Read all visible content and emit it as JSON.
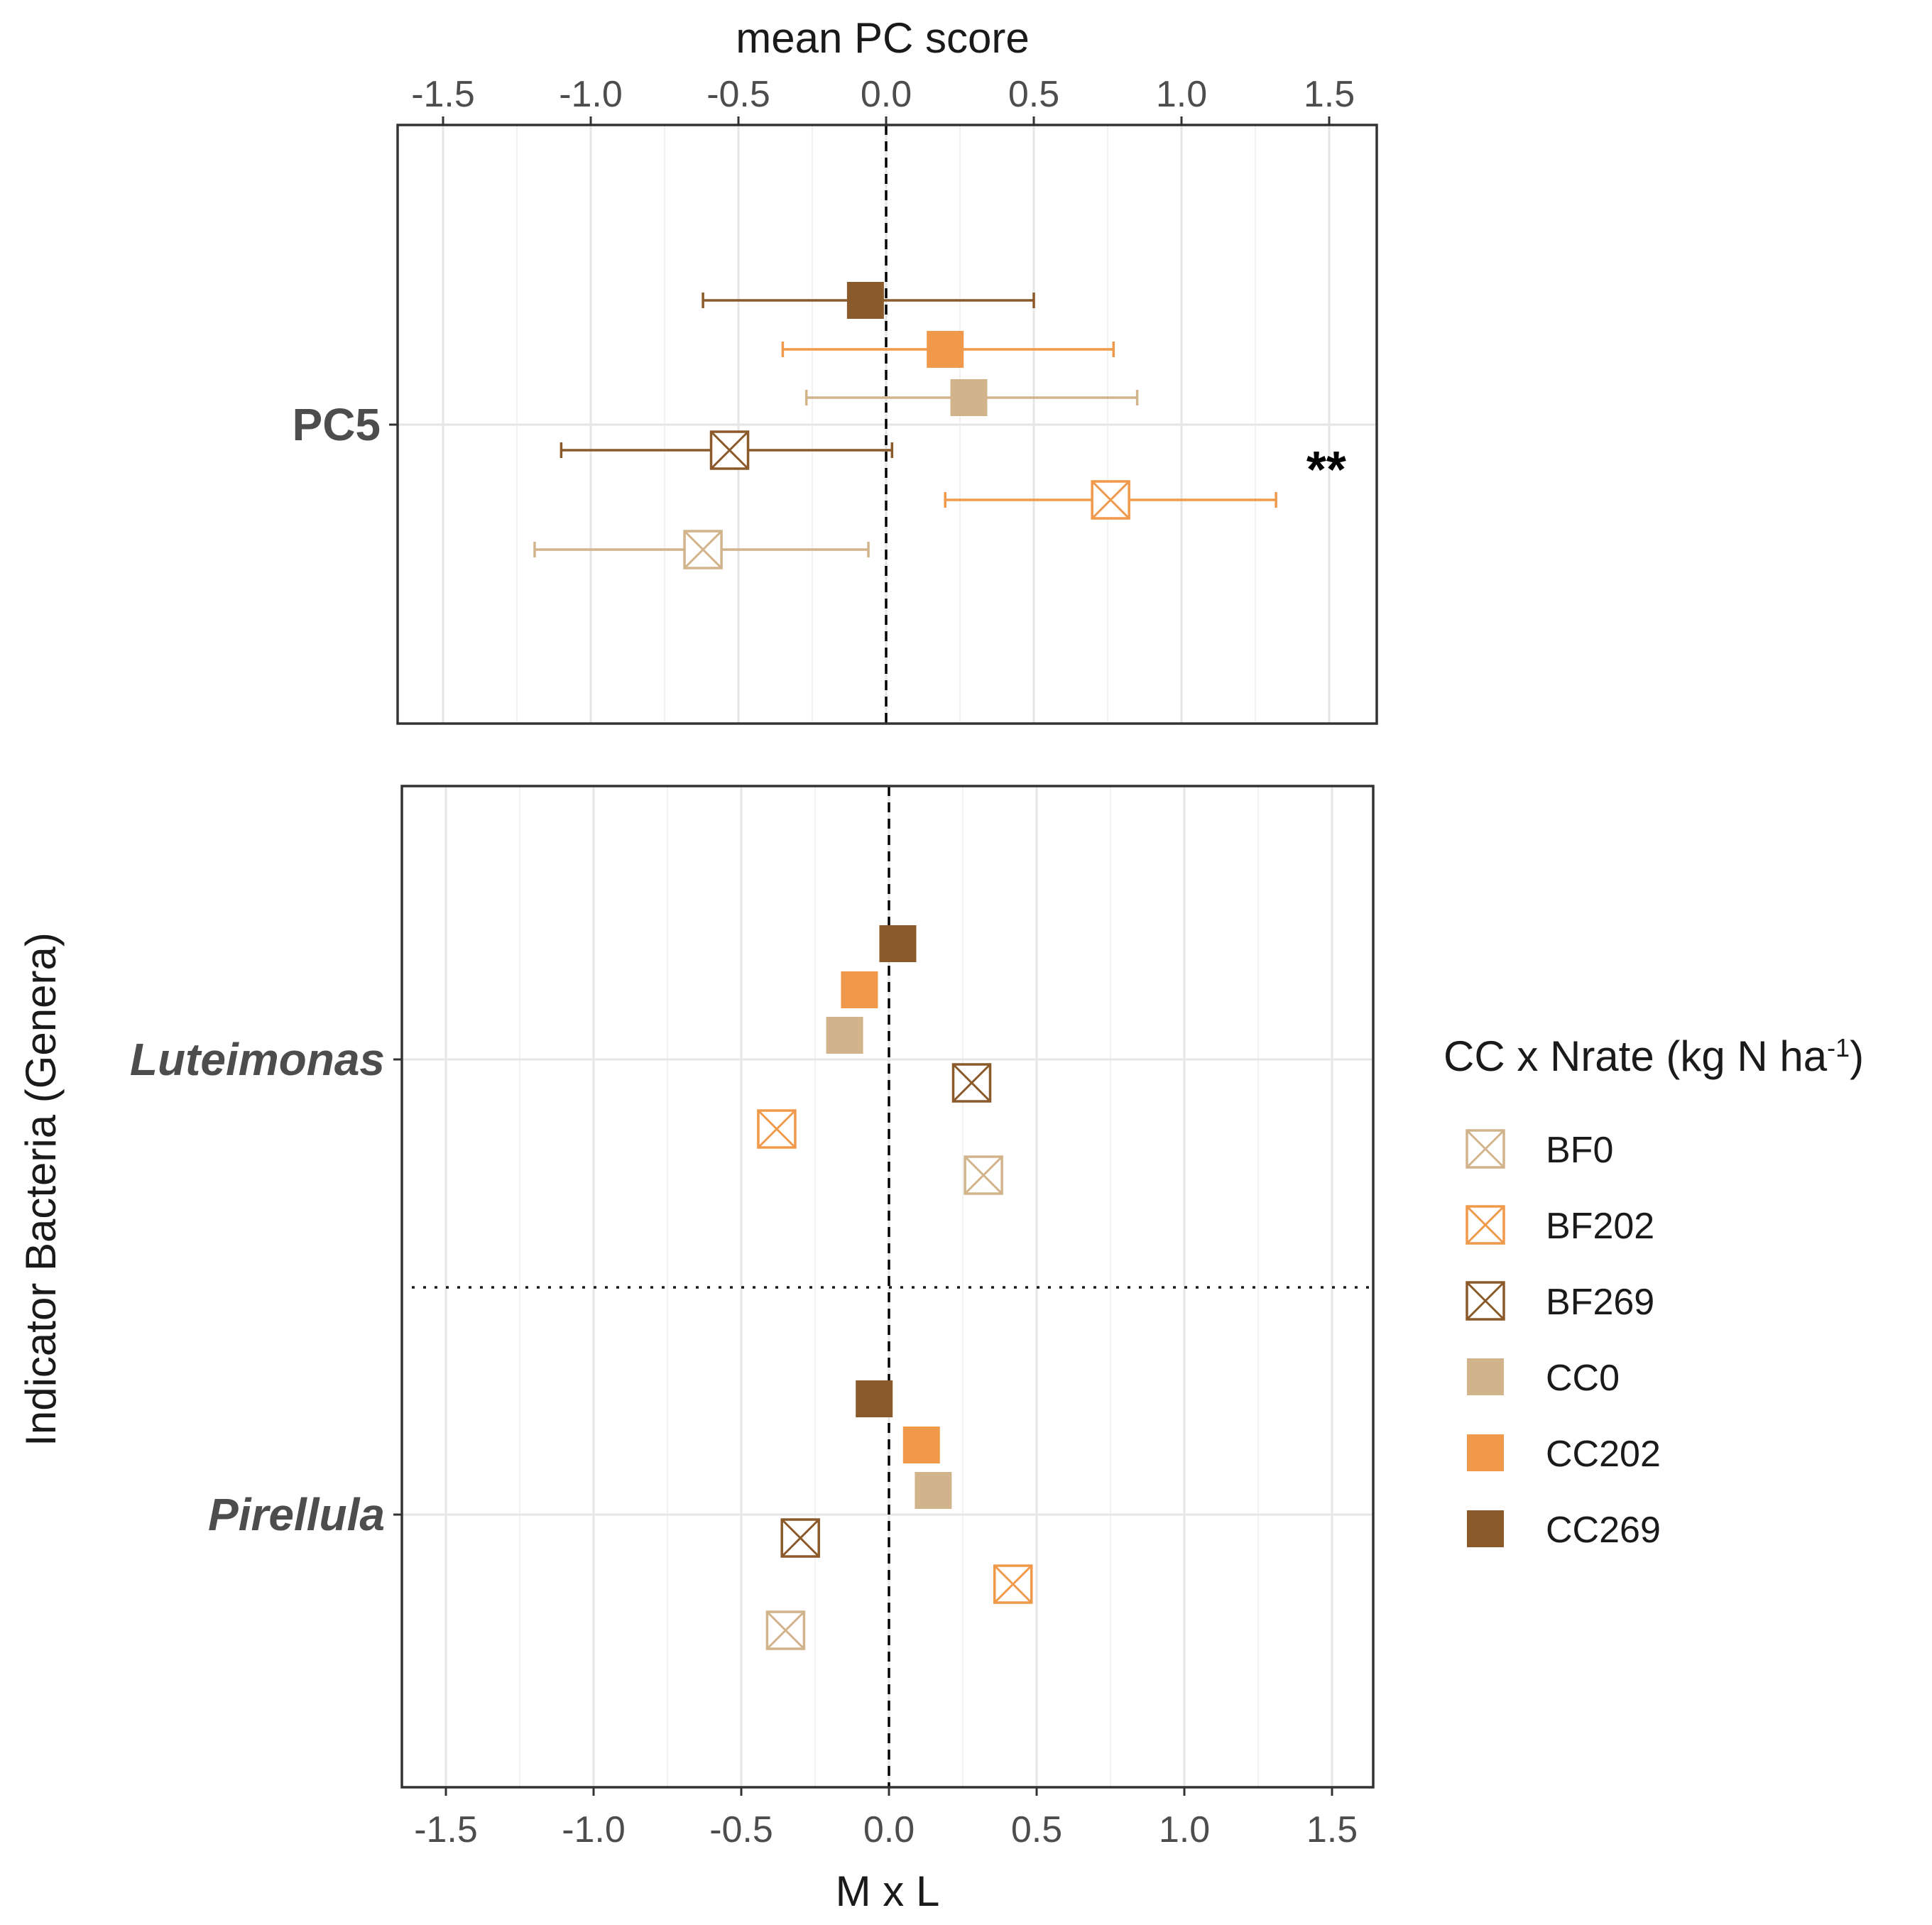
{
  "chart_data": [
    {
      "type": "scatter",
      "panel": "top",
      "xlabel": "mean PC score",
      "xlim": [
        -1.65,
        1.65
      ],
      "xticks": [
        "-1.5",
        "-1.0",
        "-0.5",
        "0.0",
        "0.5",
        "1.0",
        "1.5"
      ],
      "xtick_values": [
        -1.5,
        -1.0,
        -0.5,
        0.0,
        0.5,
        1.0,
        1.5
      ],
      "reference_line": 0,
      "categories": [
        {
          "label": "PC5",
          "italic": false,
          "points": [
            {
              "group": "CC269",
              "value": -0.07,
              "lo": -0.62,
              "hi": 0.5
            },
            {
              "group": "CC202",
              "value": 0.2,
              "lo": -0.35,
              "hi": 0.77
            },
            {
              "group": "CC0",
              "value": 0.28,
              "lo": -0.27,
              "hi": 0.85
            },
            {
              "group": "BF269",
              "value": -0.53,
              "lo": -1.1,
              "hi": 0.02
            },
            {
              "group": "BF202",
              "value": 0.76,
              "lo": 0.2,
              "hi": 1.32
            },
            {
              "group": "BF0",
              "value": -0.62,
              "lo": -1.19,
              "hi": -0.06
            }
          ]
        }
      ],
      "annotations": [
        {
          "text": "**",
          "category": "PC5",
          "x": 1.49
        }
      ]
    },
    {
      "type": "scatter",
      "panel": "bottom",
      "xlabel": "M x L",
      "ylabel": "Indicator Bacteria (Genera)",
      "xlim": [
        -1.65,
        1.65
      ],
      "xticks": [
        "-1.5",
        "-1.0",
        "-0.5",
        "0.0",
        "0.5",
        "1.0",
        "1.5"
      ],
      "xtick_values": [
        -1.5,
        -1.0,
        -0.5,
        0.0,
        0.5,
        1.0,
        1.5
      ],
      "reference_line": 0,
      "categories": [
        {
          "label": "Luteimonas",
          "italic": true,
          "points": [
            {
              "group": "CC269",
              "value": 0.03
            },
            {
              "group": "CC202",
              "value": -0.1
            },
            {
              "group": "CC0",
              "value": -0.15
            },
            {
              "group": "BF269",
              "value": 0.28
            },
            {
              "group": "BF202",
              "value": -0.38
            },
            {
              "group": "BF0",
              "value": 0.32
            }
          ]
        },
        {
          "label": "Pirellula",
          "italic": true,
          "points": [
            {
              "group": "CC269",
              "value": -0.05
            },
            {
              "group": "CC202",
              "value": 0.11
            },
            {
              "group": "CC0",
              "value": 0.15
            },
            {
              "group": "BF269",
              "value": -0.3
            },
            {
              "group": "BF202",
              "value": 0.42
            },
            {
              "group": "BF0",
              "value": -0.35
            }
          ]
        }
      ]
    }
  ],
  "legend": {
    "title_main": "CC x Nrate (kg N ha",
    "title_sup": "-1",
    "title_end": ")",
    "items": [
      {
        "label": "BF0",
        "color": "#d2b48c",
        "shape": "box-x"
      },
      {
        "label": "BF202",
        "color": "#f0994a",
        "shape": "box-x"
      },
      {
        "label": "BF269",
        "color": "#8b5a2b",
        "shape": "box-x"
      },
      {
        "label": "CC0",
        "color": "#d2b48c",
        "shape": "filled-square"
      },
      {
        "label": "CC202",
        "color": "#f0994a",
        "shape": "filled-square"
      },
      {
        "label": "CC269",
        "color": "#8b5a2b",
        "shape": "filled-square"
      }
    ]
  }
}
